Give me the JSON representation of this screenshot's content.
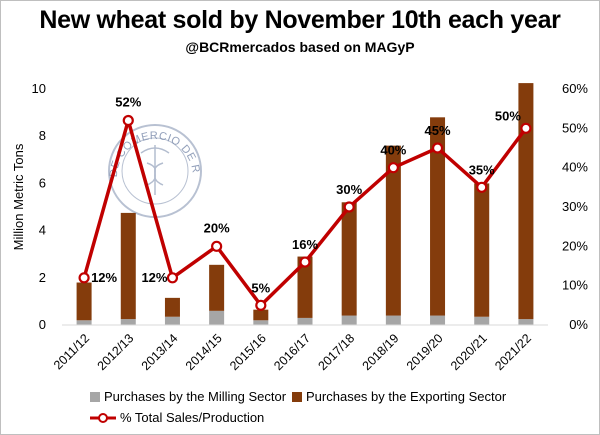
{
  "chart_data": {
    "type": "bar",
    "title": "New wheat sold by November 10th each year",
    "subtitle": "@BCRmercados based on MAGyP",
    "ylabel": "Million Metric Tons",
    "ylim": [
      0,
      10
    ],
    "y_ticks": [
      0,
      2,
      4,
      6,
      8,
      10
    ],
    "y2lim": [
      0,
      60
    ],
    "y2_ticks": [
      "0%",
      "10%",
      "20%",
      "30%",
      "40%",
      "50%",
      "60%"
    ],
    "categories": [
      "2011/12",
      "2012/13",
      "2013/14",
      "2014/15",
      "2015/16",
      "2016/17",
      "2017/18",
      "2018/19",
      "2019/20",
      "2020/21",
      "2021/22"
    ],
    "series": [
      {
        "name": "Purchases by the Milling Sector",
        "color": "#a6a6a6",
        "values": [
          0.2,
          0.25,
          0.35,
          0.6,
          0.2,
          0.3,
          0.4,
          0.4,
          0.4,
          0.35,
          0.25
        ]
      },
      {
        "name": "Purchases by the Exporting Sector",
        "color": "#843c0c",
        "values": [
          1.6,
          4.5,
          0.8,
          1.95,
          0.45,
          2.6,
          4.8,
          7.2,
          8.4,
          5.65,
          10.0
        ]
      },
      {
        "name": "% Total Sales/Production",
        "color": "#c00000",
        "axis": "right",
        "values": [
          12,
          52,
          12,
          20,
          5,
          16,
          30,
          40,
          45,
          35,
          50
        ]
      }
    ],
    "data_labels": [
      "12%",
      "52%",
      "12%",
      "20%",
      "5%",
      "16%",
      "30%",
      "40%",
      "45%",
      "35%",
      "50%"
    ],
    "watermark": "BOLSA DE COMERCIO DE ROSARIO",
    "legend_position": "bottom",
    "grid": false
  }
}
